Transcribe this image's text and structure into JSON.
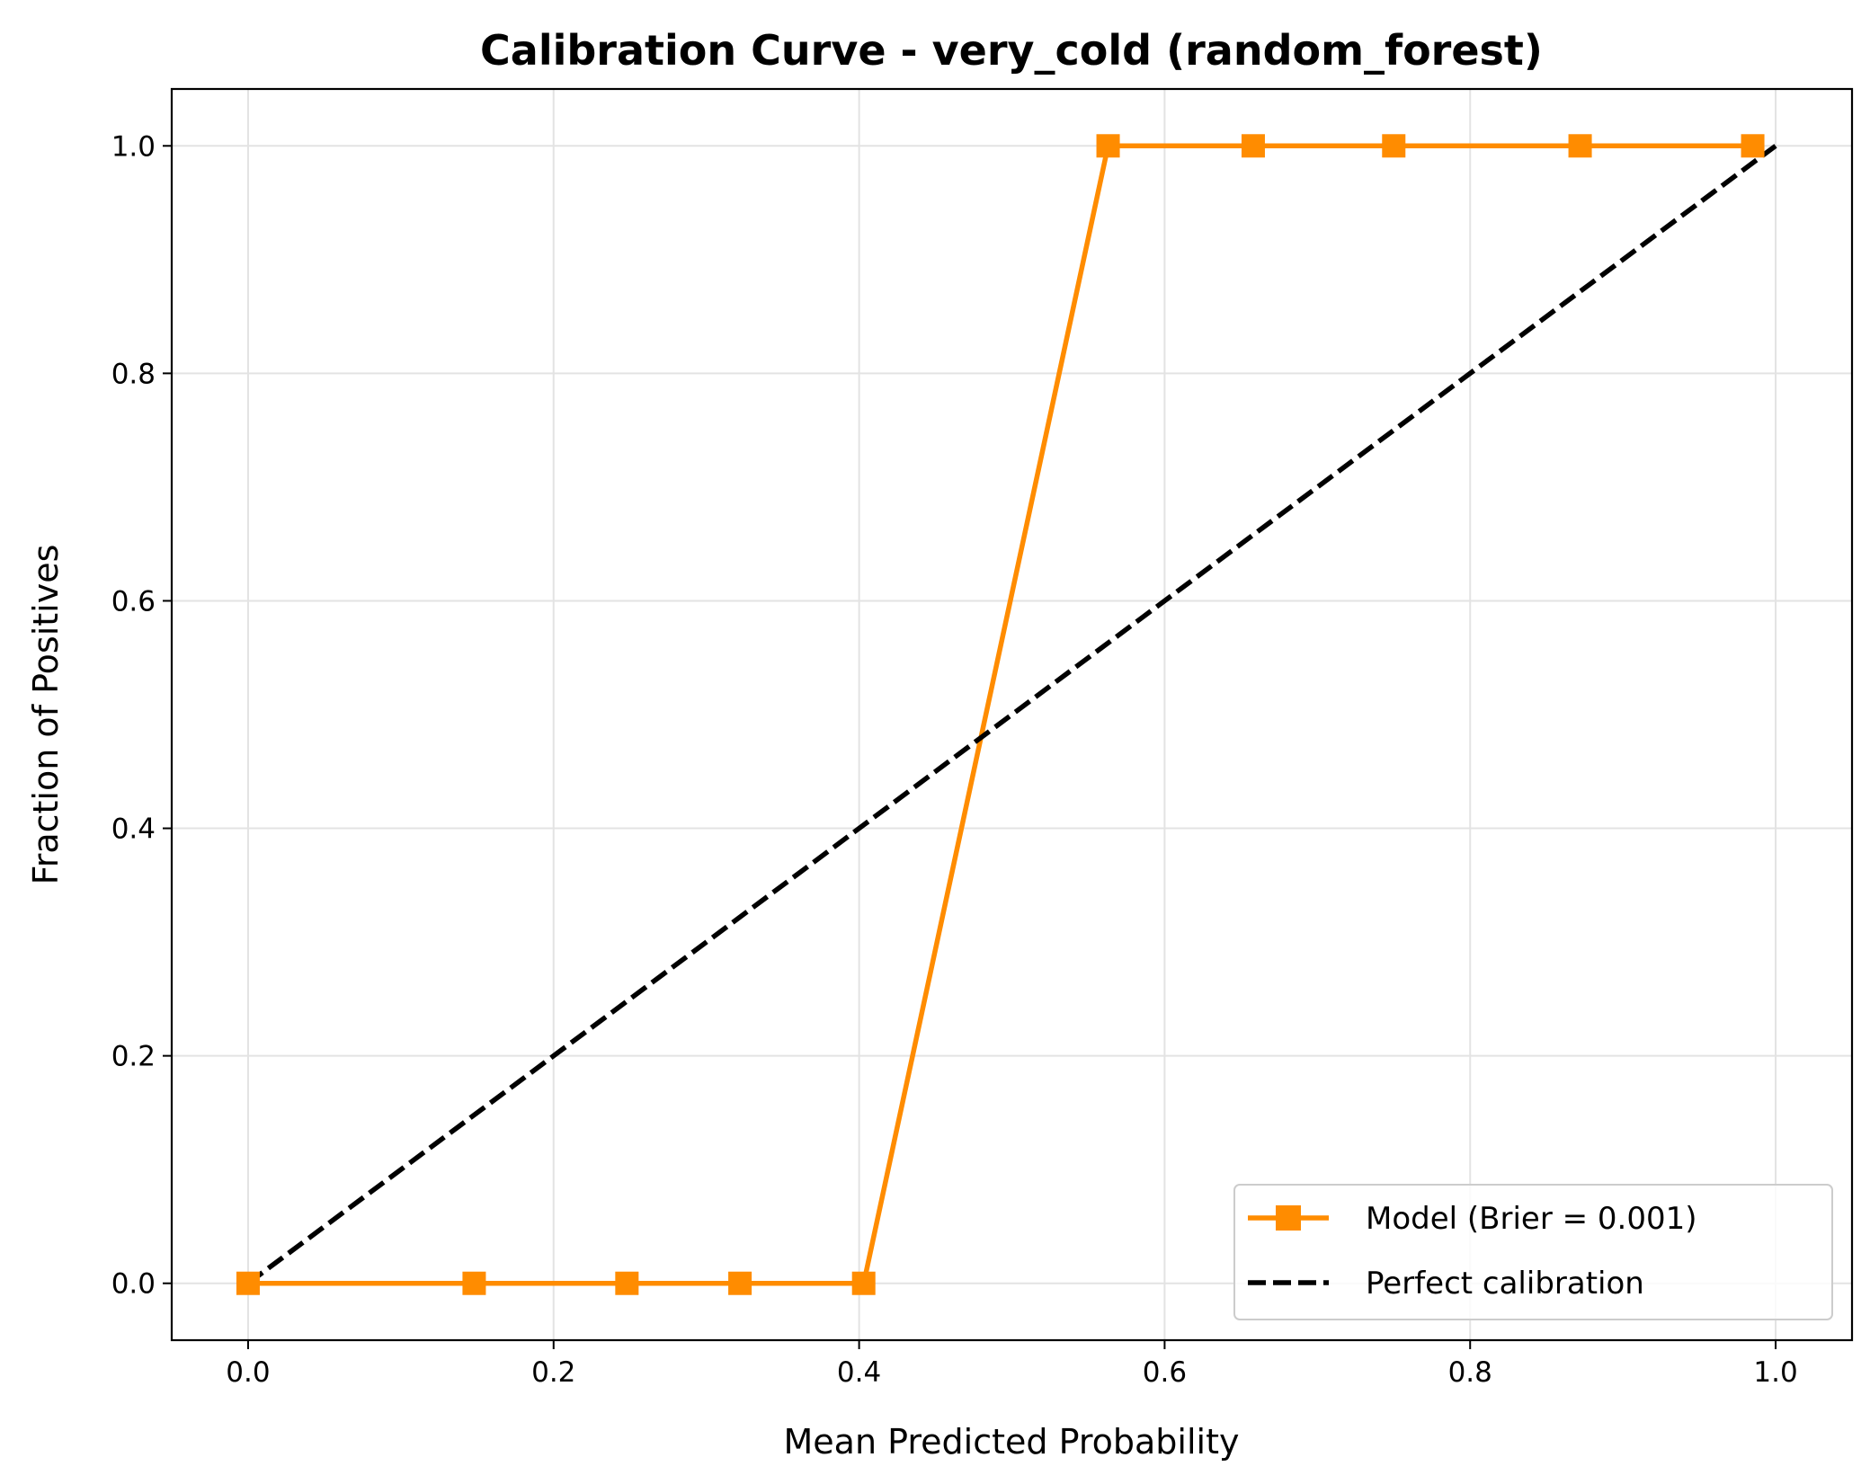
{
  "chart_data": {
    "type": "line",
    "title": "Calibration Curve - very_cold (random_forest)",
    "xlabel": "Mean Predicted Probability",
    "ylabel": "Fraction of Positives",
    "xlim": [
      -0.05,
      1.05
    ],
    "ylim": [
      -0.05,
      1.05
    ],
    "xticks": [
      "0.0",
      "0.2",
      "0.4",
      "0.6",
      "0.8",
      "1.0"
    ],
    "yticks": [
      "0.0",
      "0.2",
      "0.4",
      "0.6",
      "0.8",
      "1.0"
    ],
    "grid": true,
    "legend_position": "lower-right",
    "series": [
      {
        "name": "Model (Brier = 0.001)",
        "style": "solid-square-markers",
        "color": "#ff8c00",
        "x": [
          0.0,
          0.148,
          0.248,
          0.322,
          0.403,
          0.563,
          0.658,
          0.75,
          0.872,
          0.985
        ],
        "y": [
          0,
          0,
          0,
          0,
          0,
          1,
          1,
          1,
          1,
          1
        ]
      },
      {
        "name": "Perfect calibration",
        "style": "dashed",
        "color": "#000000",
        "x": [
          0,
          1
        ],
        "y": [
          0,
          1
        ]
      }
    ]
  }
}
